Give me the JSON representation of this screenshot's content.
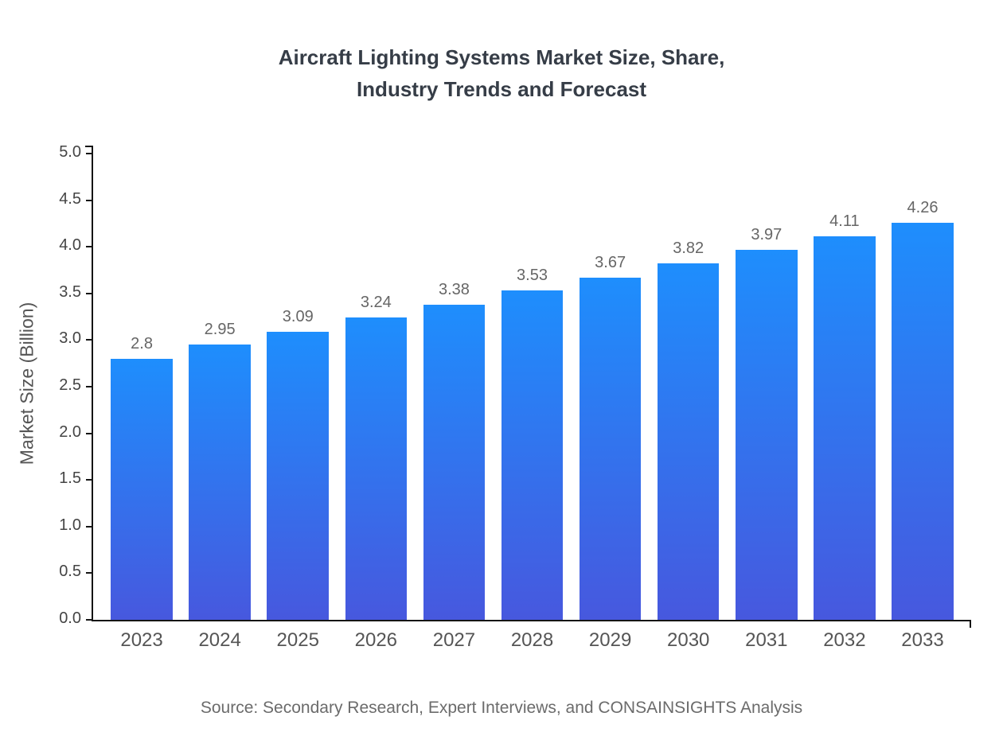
{
  "title": {
    "line1": "Aircraft Lighting Systems Market Size, Share,",
    "line2": "Industry Trends and Forecast"
  },
  "source": "Source: Secondary Research, Expert Interviews, and CONSAINSIGHTS Analysis",
  "colors": {
    "bar_gradient_top": "#1e8efd",
    "bar_gradient_bottom": "#4758de",
    "axis": "#151515",
    "title_text": "#363d47",
    "value_label_text": "#666666"
  },
  "chart_data": {
    "type": "bar",
    "title": "Aircraft Lighting Systems Market Size, Share, Industry Trends and Forecast",
    "categories": [
      "2023",
      "2024",
      "2025",
      "2026",
      "2027",
      "2028",
      "2029",
      "2030",
      "2031",
      "2032",
      "2033"
    ],
    "values": [
      2.8,
      2.95,
      3.09,
      3.24,
      3.38,
      3.53,
      3.67,
      3.82,
      3.97,
      4.11,
      4.26
    ],
    "value_labels": [
      "2.8",
      "2.95",
      "3.09",
      "3.24",
      "3.38",
      "3.53",
      "3.67",
      "3.82",
      "3.97",
      "4.11",
      "4.26"
    ],
    "xlabel": "",
    "ylabel": "Market Size (Billion)",
    "ylim": [
      0,
      5
    ],
    "y_ticks": [
      "0.0",
      "0.5",
      "1.0",
      "1.5",
      "2.0",
      "2.5",
      "3.0",
      "3.5",
      "4.0",
      "4.5",
      "5.0"
    ],
    "grid": false,
    "legend": false
  }
}
